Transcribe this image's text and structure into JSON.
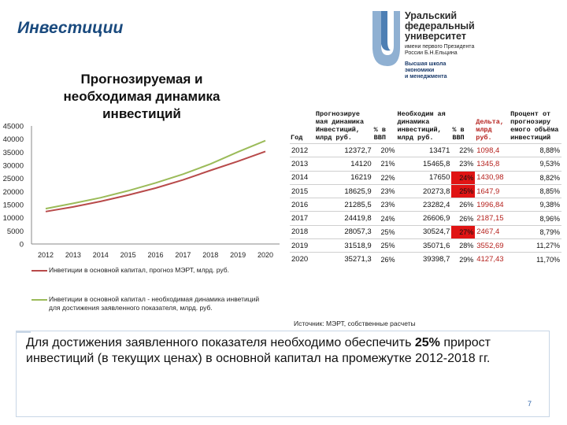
{
  "slide_title": "Инвестиции",
  "logo": {
    "lines": [
      "Уральский",
      "федеральный",
      "университет"
    ],
    "sub1": "имени первого Президента",
    "sub2": "России Б.Н.Ельцина",
    "school1": "Высшая школа",
    "school2": "экономики",
    "school3": "и менеджмента",
    "brand_color": "#1a3a6a"
  },
  "chart_title": {
    "l1": "Прогнозируемая и",
    "l2": "необходимая динамика",
    "l3": "инвестиций"
  },
  "chart_data": {
    "type": "line",
    "x": [
      2012,
      2013,
      2014,
      2015,
      2016,
      2017,
      2018,
      2019,
      2020
    ],
    "ylim": [
      0,
      45000
    ],
    "y_ticks": [
      "0",
      "5000",
      "10000",
      "15000",
      "20000",
      "25000",
      "30000",
      "35000",
      "40000",
      "45000"
    ],
    "x_ticks": [
      "2012",
      "2013",
      "2014",
      "2015",
      "2016",
      "2017",
      "2018",
      "2019",
      "2020"
    ],
    "grid": false,
    "legend_position": "bottom",
    "series": [
      {
        "name": "Инветиции в основной капитал, прогноз МЭРТ, млрд. руб.",
        "values": [
          12372.7,
          14120,
          16219,
          18625.9,
          21285.5,
          24419.8,
          28057.3,
          31518.9,
          35271.3
        ],
        "color": "#b84a4a"
      },
      {
        "name": "Инветиции в основной капитал - необходимая динамика инветиций для достижения заявленного показателя, млрд. руб.",
        "values": [
          13471,
          15465.8,
          17650,
          20273.8,
          23282.4,
          26606.9,
          30524.7,
          35071.6,
          39398.7
        ],
        "color": "#9bbb59"
      }
    ]
  },
  "table": {
    "headers": {
      "year": "Год",
      "forecast": "Прогнозируе мая динамика Инвестиций, млрд руб.",
      "forecast_pct": "% в ВВП",
      "required": "Необходим ая динамика инвестиций, млрд руб.",
      "required_pct": "% в ВВП",
      "delta": "Дельта, млрд руб.",
      "share": "Процент от прогнозиру емого объёма инвестиций"
    },
    "rows": [
      {
        "year": "2012",
        "forecast": "12372,7",
        "forecast_pct": "20%",
        "required": "13471",
        "required_pct": "22%",
        "delta": "1098,4",
        "share": "8,88%"
      },
      {
        "year": "2013",
        "forecast": "14120",
        "forecast_pct": "21%",
        "required": "15465,8",
        "required_pct": "23%",
        "delta": "1345,8",
        "share": "9,53%"
      },
      {
        "year": "2014",
        "forecast": "16219",
        "forecast_pct": "22%",
        "required": "17650",
        "required_pct": "24%",
        "delta": "1430,98",
        "share": "8,82%"
      },
      {
        "year": "2015",
        "forecast": "18625,9",
        "forecast_pct": "23%",
        "required": "20273,8",
        "required_pct": "25%",
        "delta": "1647,9",
        "share": "8,85%"
      },
      {
        "year": "2016",
        "forecast": "21285,5",
        "forecast_pct": "23%",
        "required": "23282,4",
        "required_pct": "26%",
        "delta": "1996,84",
        "share": "9,38%"
      },
      {
        "year": "2017",
        "forecast": "24419,8",
        "forecast_pct": "24%",
        "required": "26606,9",
        "required_pct": "26%",
        "delta": "2187,15",
        "share": "8,96%"
      },
      {
        "year": "2018",
        "forecast": "28057,3",
        "forecast_pct": "25%",
        "required": "30524,7",
        "required_pct": "27%",
        "delta": "2467,4",
        "share": "8,79%"
      },
      {
        "year": "2019",
        "forecast": "31518,9",
        "forecast_pct": "25%",
        "required": "35071,6",
        "required_pct": "28%",
        "delta": "3552,69",
        "share": "11,27%"
      },
      {
        "year": "2020",
        "forecast": "35271,3",
        "forecast_pct": "26%",
        "required": "39398,7",
        "required_pct": "29%",
        "delta": "4127,43",
        "share": "11,70%"
      }
    ],
    "highlight_color": "#e01414"
  },
  "source": "Источник: МЭРТ, собственные расчеты",
  "footer": {
    "part1": "Для достижения заявленного показателя необходимо обеспечить ",
    "bold": "25%",
    "part2": " прирост инвестиций (в текущих ценах)  в основной капитал на промежутке 2012-2018 гг."
  },
  "page_number": "7"
}
